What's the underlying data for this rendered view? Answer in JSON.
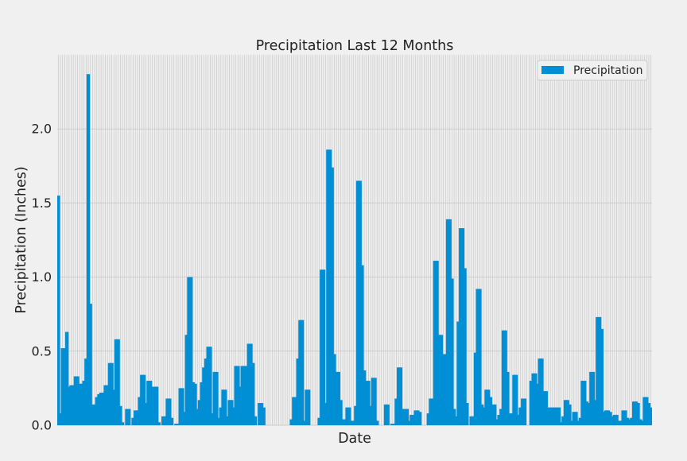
{
  "chart_data": {
    "type": "bar",
    "title": "Precipitation Last 12 Months",
    "xlabel": "Date",
    "ylabel": "Precipitation (Inches)",
    "ylim": [
      0,
      2.5
    ],
    "yticks": [
      "0.0",
      "0.5",
      "1.0",
      "1.5",
      "2.0"
    ],
    "ytick_values": [
      0,
      0.5,
      1.0,
      1.5,
      2.0
    ],
    "grid": true,
    "legend": {
      "placement": "top-right",
      "entries": [
        "Precipitation"
      ]
    },
    "series": [
      {
        "name": "Precipitation",
        "color": "#008fd5",
        "values": [
          1.55,
          0.08,
          0.52,
          0.52,
          0.63,
          0.26,
          0.27,
          0.27,
          0.33,
          0.33,
          0.28,
          0.28,
          0.3,
          0.45,
          2.37,
          0.82,
          0.14,
          0.14,
          0.19,
          0.21,
          0.22,
          0.22,
          0.27,
          0.27,
          0.42,
          0.42,
          0.24,
          0.58,
          0.58,
          0.13,
          0.02,
          0.0,
          0.11,
          0.11,
          0.0,
          0.05,
          0.1,
          0.1,
          0.19,
          0.34,
          0.34,
          0.15,
          0.3,
          0.3,
          0.26,
          0.26,
          0.26,
          0.02,
          0.0,
          0.06,
          0.06,
          0.18,
          0.18,
          0.05,
          0.0,
          0.01,
          0.01,
          0.25,
          0.25,
          0.09,
          0.61,
          1.0,
          1.0,
          0.29,
          0.28,
          0.11,
          0.17,
          0.29,
          0.39,
          0.45,
          0.53,
          0.53,
          0.08,
          0.36,
          0.36,
          0.05,
          0.12,
          0.24,
          0.24,
          0.06,
          0.17,
          0.17,
          0.12,
          0.4,
          0.4,
          0.26,
          0.4,
          0.4,
          0.4,
          0.55,
          0.55,
          0.42,
          0.06,
          0.0,
          0.15,
          0.15,
          0.12,
          0.0,
          0.0,
          0.0,
          0.0,
          0.0,
          0.0,
          0.0,
          0.0,
          0.0,
          0.0,
          0.0,
          0.0,
          0.04,
          0.19,
          0.19,
          0.45,
          0.71,
          0.71,
          0.03,
          0.24,
          0.24,
          0.0,
          0.0,
          0.0,
          0.0,
          0.05,
          1.05,
          1.05,
          0.15,
          1.86,
          1.86,
          1.74,
          0.48,
          0.36,
          0.36,
          0.17,
          0.04,
          0.04,
          0.12,
          0.12,
          0.03,
          0.03,
          0.13,
          1.65,
          1.65,
          1.08,
          0.37,
          0.3,
          0.3,
          0.13,
          0.32,
          0.32,
          0.03,
          0.0,
          0.0,
          0.0,
          0.14,
          0.14,
          0.0,
          0.01,
          0.01,
          0.18,
          0.39,
          0.39,
          0.11,
          0.11,
          0.11,
          0.03,
          0.07,
          0.07,
          0.1,
          0.1,
          0.09,
          0.0,
          0.0,
          0.0,
          0.08,
          0.18,
          0.18,
          1.11,
          1.11,
          0.61,
          0.61,
          0.48,
          0.48,
          1.39,
          1.39,
          0.99,
          0.11,
          0.06,
          0.7,
          1.33,
          1.33,
          1.06,
          0.15,
          0.0,
          0.06,
          0.06,
          0.49,
          0.92,
          0.92,
          0.14,
          0.12,
          0.24,
          0.24,
          0.19,
          0.14,
          0.14,
          0.04,
          0.07,
          0.11,
          0.64,
          0.64,
          0.36,
          0.08,
          0.08,
          0.34,
          0.34,
          0.07,
          0.12,
          0.18,
          0.18,
          0.0,
          0.0,
          0.3,
          0.35,
          0.35,
          0.28,
          0.45,
          0.45,
          0.23,
          0.23,
          0.12,
          0.12,
          0.12,
          0.12,
          0.12,
          0.12,
          0.02,
          0.06,
          0.17,
          0.17,
          0.14,
          0.03,
          0.09,
          0.09,
          0.03,
          0.05,
          0.3,
          0.3,
          0.16,
          0.15,
          0.36,
          0.36,
          0.17,
          0.73,
          0.73,
          0.65,
          0.09,
          0.1,
          0.1,
          0.09,
          0.06,
          0.07,
          0.07,
          0.03,
          0.03,
          0.1,
          0.1,
          0.05,
          0.04,
          0.05,
          0.16,
          0.16,
          0.15,
          0.04,
          0.03,
          0.19,
          0.19,
          0.15,
          0.12
        ]
      }
    ]
  }
}
